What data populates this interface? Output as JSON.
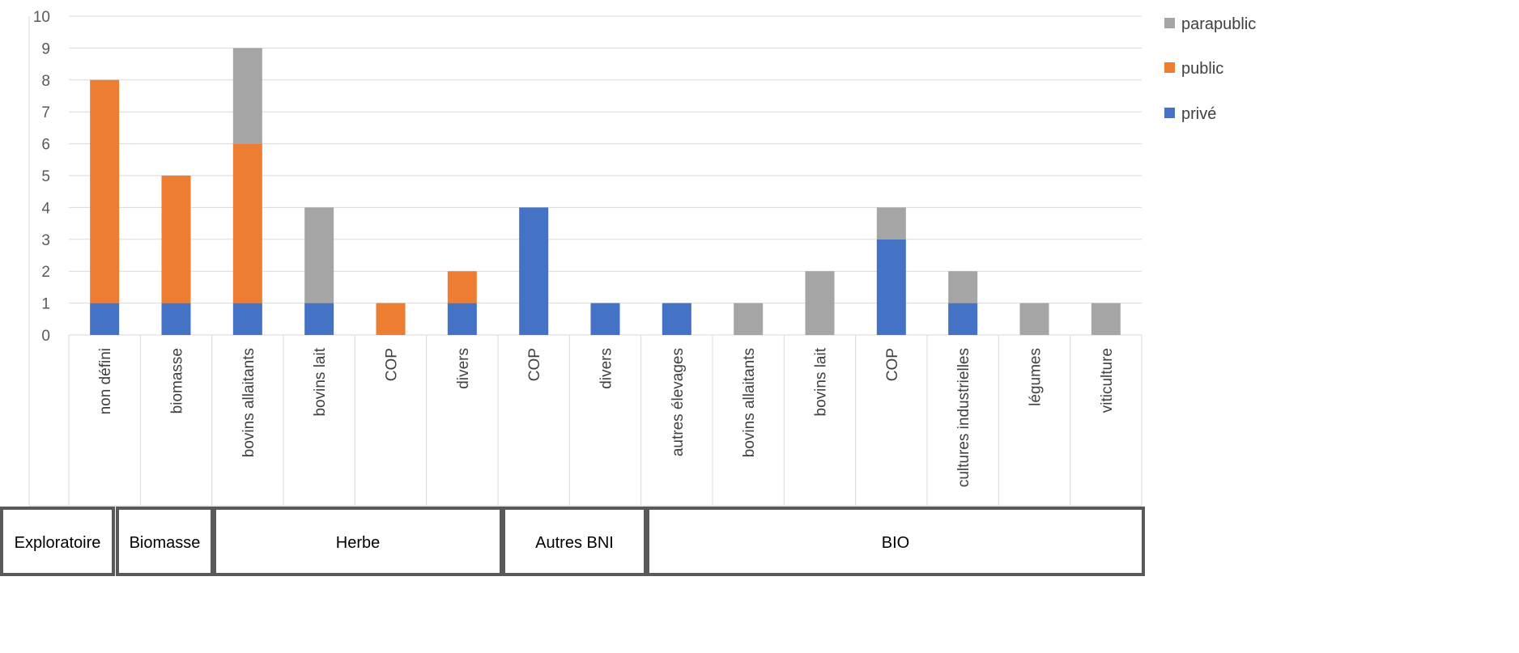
{
  "chart_data": {
    "type": "bar",
    "stacked": true,
    "title": "",
    "xlabel": "",
    "ylabel": "",
    "ylim": [
      0,
      10
    ],
    "yticks": [
      0,
      1,
      2,
      3,
      4,
      5,
      6,
      7,
      8,
      9,
      10
    ],
    "grid": true,
    "legend_position": "top-right",
    "categories": [
      "non défini",
      "biomasse",
      "bovins allaitants",
      "bovins lait",
      "COP",
      "divers",
      "COP",
      "divers",
      "autres élevages",
      "bovins allaitants",
      "bovins lait",
      "COP",
      "cultures industrielles",
      "légumes",
      "viticulture"
    ],
    "groups": [
      {
        "label": "Exploratoire",
        "start": 0,
        "end": 0
      },
      {
        "label": "Biomasse",
        "start": 1,
        "end": 1
      },
      {
        "label": "Herbe",
        "start": 2,
        "end": 5
      },
      {
        "label": "Autres BNI",
        "start": 6,
        "end": 7
      },
      {
        "label": "BIO",
        "start": 8,
        "end": 14
      }
    ],
    "series": [
      {
        "name": "privé",
        "color": "#4472C4",
        "values": [
          1,
          1,
          1,
          1,
          0,
          1,
          4,
          1,
          1,
          0,
          0,
          3,
          1,
          0,
          0
        ]
      },
      {
        "name": "public",
        "color": "#ED7D31",
        "values": [
          7,
          4,
          5,
          0,
          1,
          1,
          0,
          0,
          0,
          0,
          0,
          0,
          0,
          0,
          0
        ]
      },
      {
        "name": "parapublic",
        "color": "#A5A5A5",
        "values": [
          0,
          0,
          3,
          3,
          0,
          0,
          0,
          0,
          0,
          1,
          2,
          1,
          1,
          1,
          1
        ]
      }
    ],
    "legend_order": [
      "parapublic",
      "public",
      "privé"
    ]
  }
}
